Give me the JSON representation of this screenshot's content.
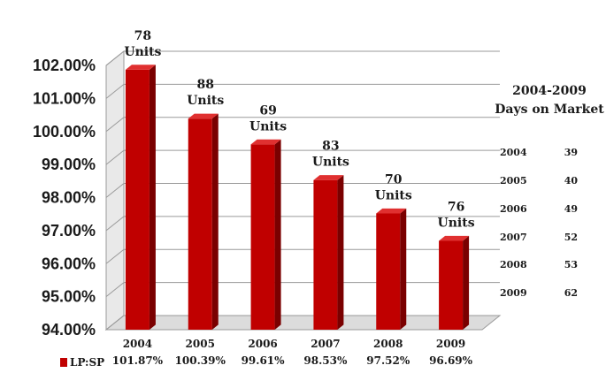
{
  "chart_data": {
    "type": "bar",
    "title": "",
    "xlabel": "",
    "ylabel": "",
    "ylim": [
      94,
      102
    ],
    "yticks": [
      "94.00%",
      "95.00%",
      "96.00%",
      "97.00%",
      "98.00%",
      "99.00%",
      "100.00%",
      "101.00%",
      "102.00%"
    ],
    "grid": true,
    "legend": {
      "position": "bottom-left",
      "entries": [
        "LP:SP"
      ]
    },
    "categories": [
      "2004",
      "2005",
      "2006",
      "2007",
      "2008",
      "2009"
    ],
    "series": [
      {
        "name": "LP:SP",
        "color": "#c00000",
        "values": [
          101.87,
          100.39,
          99.61,
          98.53,
          97.52,
          96.69
        ],
        "value_labels": [
          "101.87%",
          "100.39%",
          "99.61%",
          "98.53%",
          "97.52%",
          "96.69%"
        ]
      }
    ],
    "annotations": [
      {
        "count": "78",
        "unit": "Units"
      },
      {
        "count": "88",
        "unit": "Units"
      },
      {
        "count": "69",
        "unit": "Units"
      },
      {
        "count": "83",
        "unit": "Units"
      },
      {
        "count": "70",
        "unit": "Units"
      },
      {
        "count": "76",
        "unit": "Units"
      }
    ]
  },
  "side_table": {
    "title_line1": "2004-2009",
    "title_line2": "Days on Market",
    "rows": [
      {
        "year": "2004",
        "days": "39"
      },
      {
        "year": "2005",
        "days": "40"
      },
      {
        "year": "2006",
        "days": "49"
      },
      {
        "year": "2007",
        "days": "52"
      },
      {
        "year": "2008",
        "days": "53"
      },
      {
        "year": "2009",
        "days": "62"
      }
    ]
  }
}
